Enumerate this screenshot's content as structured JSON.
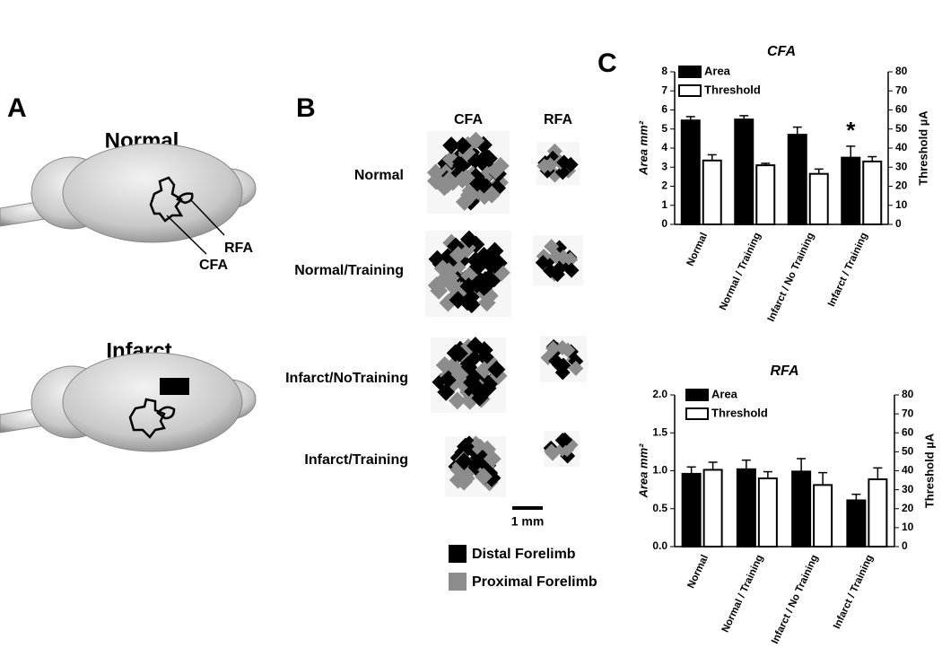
{
  "panel_a": {
    "label": "A",
    "normal": "Normal",
    "infarct": "Infarct",
    "rfa": "RFA",
    "cfa": "CFA"
  },
  "panel_b": {
    "label": "B",
    "columns": [
      "CFA",
      "RFA"
    ],
    "rows": [
      "Normal",
      "Normal/Training",
      "Infarct/NoTraining",
      "Infarct/Training"
    ],
    "scale_bar": "1 mm",
    "legend": [
      "Distal Forelimb",
      "Proximal Forelimb"
    ]
  },
  "panel_c_label": "C",
  "chart_data": [
    {
      "type": "bar",
      "title": "CFA",
      "ylabel": "Area mm²",
      "y2label": "Threshold µA",
      "annotation": "*",
      "categories": [
        "Normal",
        "Normal / Training",
        "Infarct / No Training",
        "Infarct / Training"
      ],
      "ylim": [
        0,
        8
      ],
      "yticks": [
        0,
        1,
        2,
        3,
        4,
        5,
        6,
        7,
        8
      ],
      "y2lim": [
        0,
        80
      ],
      "y2ticks": [
        0,
        10,
        20,
        30,
        40,
        50,
        60,
        70,
        80
      ],
      "series": [
        {
          "name": "Area",
          "color": "#000000",
          "values": [
            5.45,
            5.5,
            4.7,
            3.5
          ],
          "errors": [
            0.2,
            0.2,
            0.4,
            0.6
          ]
        },
        {
          "name": "Threshold",
          "color": "#ffffff",
          "axis": "y2",
          "values": [
            33.5,
            31,
            26.5,
            33
          ],
          "errors": [
            3,
            1,
            2.5,
            2.5
          ]
        }
      ]
    },
    {
      "type": "bar",
      "title": "RFA",
      "ylabel": "Area mm²",
      "y2label": "Threshold µA",
      "categories": [
        "Normal",
        "Normal / Training",
        "Infarct / No Training",
        "Infarct / Training"
      ],
      "ylim": [
        0,
        2
      ],
      "yticks": [
        {
          "value": 0,
          "label": "0.0"
        },
        0.5,
        {
          "value": 1,
          "label": "1.0"
        },
        1.5,
        {
          "value": 2,
          "label": "2.0"
        }
      ],
      "y2lim": [
        0,
        80
      ],
      "y2ticks": [
        0,
        10,
        20,
        30,
        40,
        50,
        60,
        70,
        80
      ],
      "series": [
        {
          "name": "Area",
          "color": "#000000",
          "values": [
            0.96,
            1.02,
            0.99,
            0.61
          ],
          "errors": [
            0.09,
            0.12,
            0.17,
            0.08
          ]
        },
        {
          "name": "Threshold",
          "color": "#ffffff",
          "axis": "y2",
          "values": [
            40.5,
            36,
            32.5,
            35.5
          ],
          "errors": [
            4,
            3.5,
            6.5,
            6
          ]
        }
      ]
    }
  ]
}
